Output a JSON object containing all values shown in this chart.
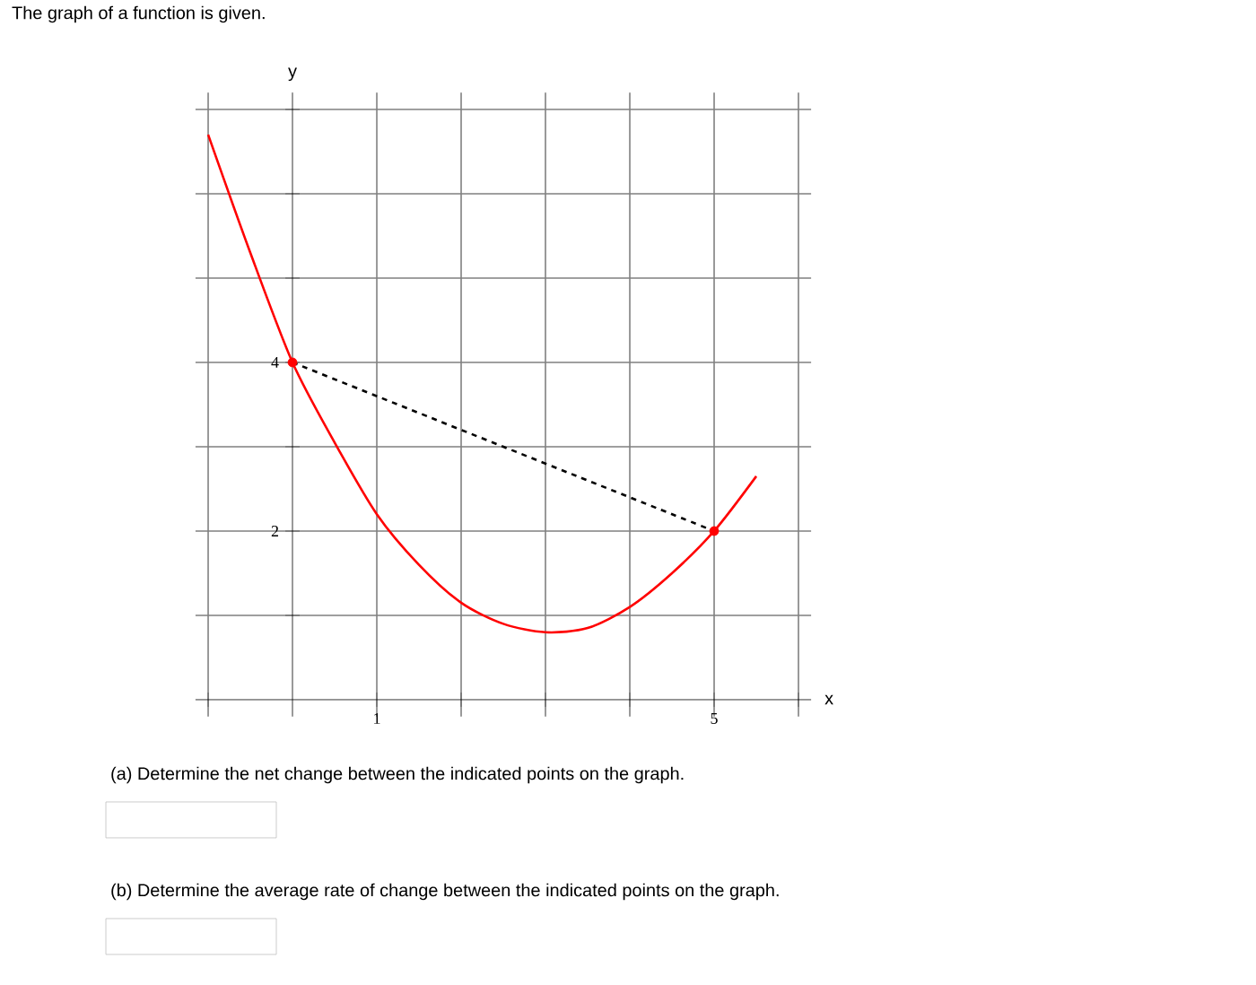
{
  "chart_data": {
    "type": "line",
    "title": "The graph of a function is given.",
    "xlabel": "x",
    "ylabel": "y",
    "xlim": [
      -1.15,
      6.15
    ],
    "ylim": [
      -0.2,
      7.2
    ],
    "xticks": [
      {
        "value": -1,
        "label": null
      },
      {
        "value": 0,
        "label": null
      },
      1,
      {
        "value": 2,
        "label": null
      },
      {
        "value": 3,
        "label": null
      },
      {
        "value": 4,
        "label": null
      },
      5,
      {
        "value": 6,
        "label": null
      }
    ],
    "yticks": [
      {
        "value": 0,
        "label": null
      },
      {
        "value": 1,
        "label": null
      },
      2,
      {
        "value": 3,
        "label": null
      },
      4,
      {
        "value": 5,
        "label": null
      },
      {
        "value": 6,
        "label": null
      },
      {
        "value": 7,
        "label": null
      }
    ],
    "grid": true,
    "series": [
      {
        "color": "#ff0000",
        "line_style": "solid",
        "marker": "none",
        "x": [
          -1,
          -0.5,
          0,
          0.5,
          1,
          1.5,
          2,
          2.5,
          3,
          3.5,
          4,
          4.5,
          5,
          5.5
        ],
        "values": [
          6.7,
          5.3,
          4,
          3.05,
          2.2,
          1.6,
          1.15,
          0.9,
          0.8,
          0.85,
          1.1,
          1.5,
          2,
          2.65
        ]
      },
      {
        "color": "#000000",
        "line_style": "dashed",
        "marker": "none",
        "x": [
          0,
          5
        ],
        "values": [
          4,
          2
        ]
      },
      {
        "type": "scatter",
        "color": "#ff0000",
        "marker": "circle",
        "x": [
          0,
          5
        ],
        "values": [
          4,
          2
        ]
      }
    ],
    "annotations": [
      "(a) Determine the net change between the indicated points on the graph.",
      "(b) Determine the average rate of change between the indicated points on the graph."
    ]
  }
}
